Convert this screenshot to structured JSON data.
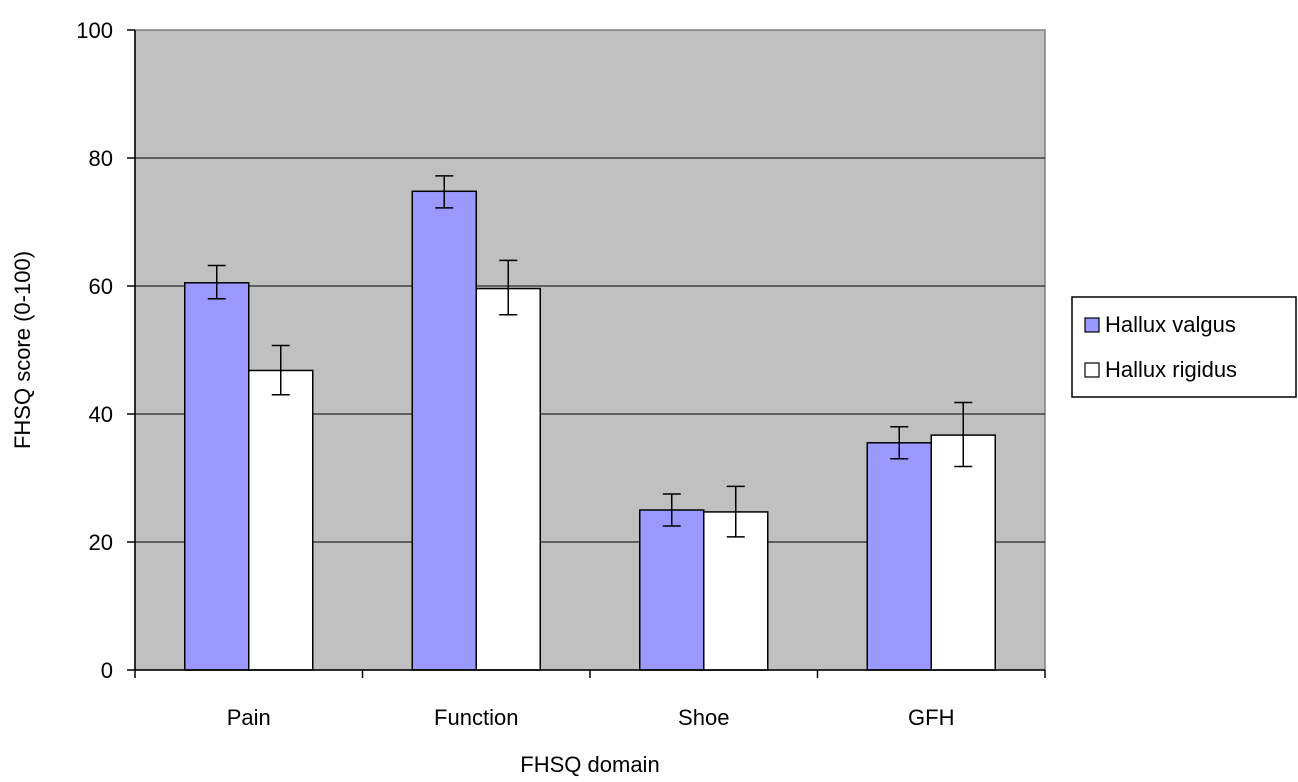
{
  "chart_data": {
    "type": "bar",
    "title": "",
    "xlabel": "FHSQ domain",
    "ylabel": "FHSQ score (0-100)",
    "ylim": [
      0,
      100
    ],
    "yticks": [
      0,
      20,
      40,
      60,
      80,
      100
    ],
    "ytick_labels": [
      "0",
      "20",
      "40",
      "60",
      "80",
      "100"
    ],
    "categories": [
      "Pain",
      "Function",
      "Shoe",
      "GFH"
    ],
    "series": [
      {
        "name": "Hallux valgus",
        "color": "#9999ff",
        "values": [
          60.5,
          74.8,
          25.0,
          35.5
        ],
        "error_low": [
          58.0,
          72.2,
          22.5,
          33.0
        ],
        "error_high": [
          63.2,
          77.2,
          27.5,
          38.0
        ]
      },
      {
        "name": "Hallux rigidus",
        "color": "#ffffff",
        "values": [
          46.8,
          59.6,
          24.7,
          36.7
        ],
        "error_low": [
          43.0,
          55.5,
          20.8,
          31.8
        ],
        "error_high": [
          50.7,
          64.0,
          28.7,
          41.8
        ]
      }
    ],
    "plot_background": "#c0c0c0",
    "grid": true,
    "legend_position": "right"
  }
}
